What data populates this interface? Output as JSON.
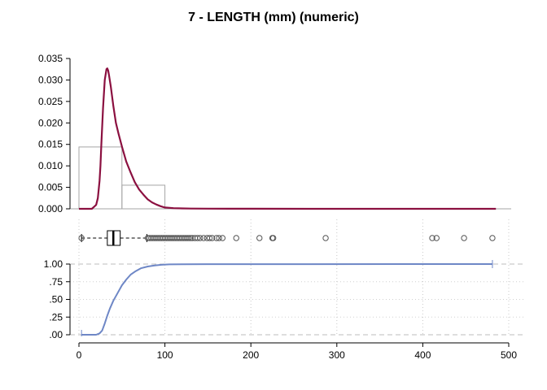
{
  "chart_data": [
    {
      "type": "histogram-density",
      "title": "7 - LENGTH (mm) (numeric)",
      "ylim": [
        0,
        0.035
      ],
      "y_ticks": [
        "0.000",
        "0.005",
        "0.010",
        "0.015",
        "0.020",
        "0.025",
        "0.030",
        "0.035"
      ],
      "histogram": {
        "bins": [
          {
            "x0": 0,
            "x1": 50,
            "density": 0.0144
          },
          {
            "x0": 50,
            "x1": 100,
            "density": 0.0055
          },
          {
            "x0": 100,
            "x1": 150,
            "density": 0.0001
          }
        ],
        "color": "#a6a6a6"
      },
      "density": {
        "color": "#8b1040",
        "x": [
          0,
          15,
          20,
          22,
          24,
          25,
          26,
          28,
          30,
          32,
          33,
          34,
          35,
          37,
          40,
          43,
          46,
          50,
          55,
          60,
          65,
          70,
          75,
          80,
          85,
          90,
          95,
          100,
          110,
          120,
          130,
          150,
          175,
          200,
          300,
          400,
          485
        ],
        "y": [
          0,
          0,
          0.0009,
          0.0025,
          0.0065,
          0.01,
          0.015,
          0.0235,
          0.03,
          0.0325,
          0.0327,
          0.0322,
          0.031,
          0.0285,
          0.024,
          0.02,
          0.0175,
          0.0145,
          0.011,
          0.0085,
          0.0062,
          0.0045,
          0.0033,
          0.0022,
          0.0015,
          0.001,
          0.0006,
          0.0003,
          0.00015,
          0.0001,
          6e-05,
          3e-05,
          2e-05,
          1e-05,
          5e-06,
          3e-06,
          2e-06
        ]
      }
    },
    {
      "type": "boxplot",
      "whisker_low": 3,
      "q1": 33,
      "median": 40,
      "q3": 48,
      "whisker_high": 79,
      "outliers": [
        80,
        82,
        84,
        86,
        88,
        90,
        92,
        94,
        96,
        98,
        100,
        102,
        104,
        106,
        108,
        110,
        112,
        114,
        116,
        118,
        120,
        122,
        124,
        126,
        128,
        130,
        132,
        135,
        138,
        141,
        145,
        149,
        152,
        155,
        160,
        163,
        167,
        183,
        210,
        225,
        226,
        287,
        411,
        416,
        448,
        481
      ]
    },
    {
      "type": "ecdf",
      "color": "#6e87c6",
      "ylim": [
        0,
        1
      ],
      "y_ticks": [
        ".00",
        ".25",
        ".50",
        ".75",
        "1.00"
      ],
      "x_ticks": [
        "0",
        "100",
        "200",
        "300",
        "400",
        "500"
      ],
      "xlim": [
        0,
        500
      ],
      "x": [
        3,
        20,
        24,
        27,
        30,
        33,
        36,
        40,
        45,
        50,
        55,
        60,
        66,
        72,
        80,
        88,
        96,
        105,
        120,
        150,
        481
      ],
      "y": [
        0,
        0,
        0.02,
        0.06,
        0.16,
        0.27,
        0.37,
        0.48,
        0.59,
        0.7,
        0.78,
        0.85,
        0.9,
        0.94,
        0.965,
        0.98,
        0.99,
        0.995,
        0.998,
        0.999,
        1.0
      ]
    }
  ]
}
